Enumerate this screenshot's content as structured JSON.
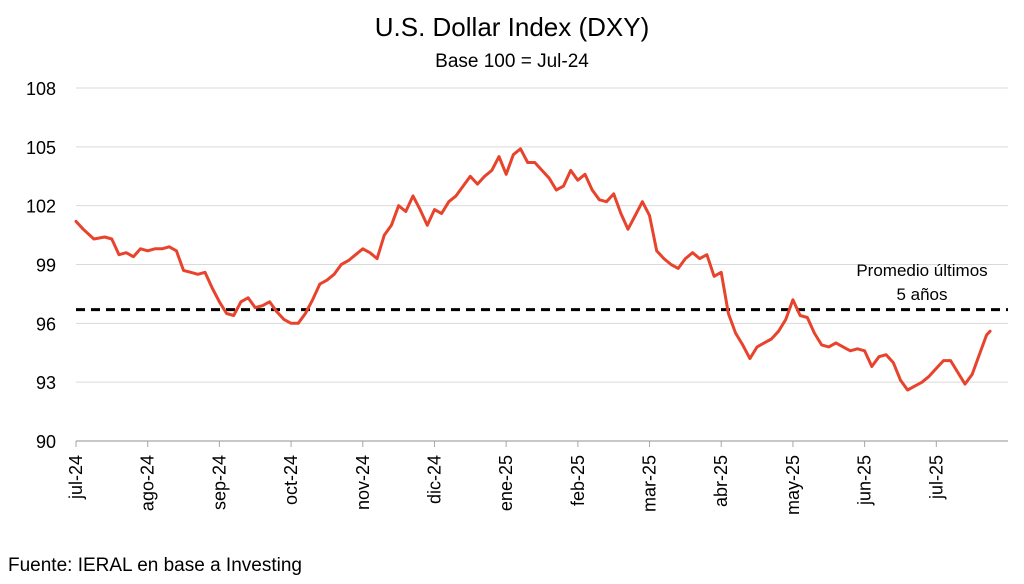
{
  "chart_data": {
    "type": "line",
    "title": "U.S. Dollar Index (DXY)",
    "subtitle": "Base 100 = Jul-24",
    "source": "Fuente: IERAL en base a Investing",
    "ylim": [
      90,
      108
    ],
    "yticks": [
      90,
      93,
      96,
      99,
      102,
      105,
      108
    ],
    "grid": true,
    "x_tick_labels": [
      "jul-24",
      "ago-24",
      "sep-24",
      "oct-24",
      "nov-24",
      "dic-24",
      "ene-25",
      "feb-25",
      "mar-25",
      "abr-25",
      "may-25",
      "jun-25",
      "jul-25"
    ],
    "x_months": 13,
    "series": [
      {
        "color": "#e8432d",
        "x": [
          0,
          0.1,
          0.25,
          0.4,
          0.5,
          0.6,
          0.7,
          0.8,
          0.9,
          1.0,
          1.1,
          1.2,
          1.3,
          1.4,
          1.5,
          1.6,
          1.7,
          1.8,
          1.9,
          2.0,
          2.1,
          2.2,
          2.3,
          2.4,
          2.5,
          2.6,
          2.7,
          2.8,
          2.9,
          3.0,
          3.1,
          3.2,
          3.3,
          3.4,
          3.5,
          3.6,
          3.7,
          3.8,
          3.9,
          4.0,
          4.1,
          4.2,
          4.3,
          4.4,
          4.5,
          4.6,
          4.7,
          4.8,
          4.9,
          5.0,
          5.1,
          5.2,
          5.3,
          5.4,
          5.5,
          5.6,
          5.7,
          5.8,
          5.9,
          6.0,
          6.1,
          6.2,
          6.3,
          6.4,
          6.5,
          6.6,
          6.7,
          6.8,
          6.9,
          7.0,
          7.1,
          7.2,
          7.3,
          7.4,
          7.5,
          7.6,
          7.7,
          7.8,
          7.9,
          8.0,
          8.1,
          8.2,
          8.3,
          8.4,
          8.5,
          8.6,
          8.7,
          8.8,
          8.9,
          9.0,
          9.1,
          9.2,
          9.3,
          9.4,
          9.5,
          9.6,
          9.7,
          9.8,
          9.9,
          10.0,
          10.1,
          10.2,
          10.3,
          10.4,
          10.5,
          10.6,
          10.7,
          10.8,
          10.9,
          11.0,
          11.1,
          11.2,
          11.3,
          11.4,
          11.5,
          11.6,
          11.7,
          11.8,
          11.9,
          12.0,
          12.1,
          12.2,
          12.3,
          12.4,
          12.5,
          12.6,
          12.7,
          12.75
        ],
        "values": [
          101.2,
          100.8,
          100.3,
          100.4,
          100.3,
          99.5,
          99.6,
          99.4,
          99.8,
          99.7,
          99.8,
          99.8,
          99.9,
          99.7,
          98.7,
          98.6,
          98.5,
          98.6,
          97.8,
          97.1,
          96.5,
          96.4,
          97.1,
          97.3,
          96.8,
          96.9,
          97.1,
          96.6,
          96.2,
          96.0,
          96.0,
          96.5,
          97.2,
          98.0,
          98.2,
          98.5,
          99.0,
          99.2,
          99.5,
          99.8,
          99.6,
          99.3,
          100.5,
          101.0,
          102.0,
          101.7,
          102.5,
          101.8,
          101.0,
          101.8,
          101.6,
          102.2,
          102.5,
          103.0,
          103.5,
          103.1,
          103.5,
          103.8,
          104.5,
          103.6,
          104.6,
          104.9,
          104.2,
          104.2,
          103.8,
          103.4,
          102.8,
          103.0,
          103.8,
          103.3,
          103.6,
          102.8,
          102.3,
          102.2,
          102.6,
          101.6,
          100.8,
          101.5,
          102.2,
          101.5,
          99.7,
          99.3,
          99.0,
          98.8,
          99.3,
          99.6,
          99.3,
          99.5,
          98.4,
          98.6,
          96.5,
          95.5,
          94.9,
          94.2,
          94.8,
          95.0,
          95.2,
          95.6,
          96.2,
          97.2,
          96.4,
          96.3,
          95.5,
          94.9,
          94.8,
          95.0,
          94.8,
          94.6,
          94.7,
          94.6,
          93.8,
          94.3,
          94.4,
          94.0,
          93.1,
          92.6,
          92.8,
          93.0,
          93.3,
          93.7,
          94.1,
          94.1,
          93.5,
          92.9,
          93.4,
          94.4,
          95.4,
          95.6
        ]
      }
    ],
    "reference_line": {
      "value": 96.7,
      "style": "dashed",
      "color": "#000000",
      "label_line1": "Promedio últimos",
      "label_line2": "5 años"
    }
  }
}
